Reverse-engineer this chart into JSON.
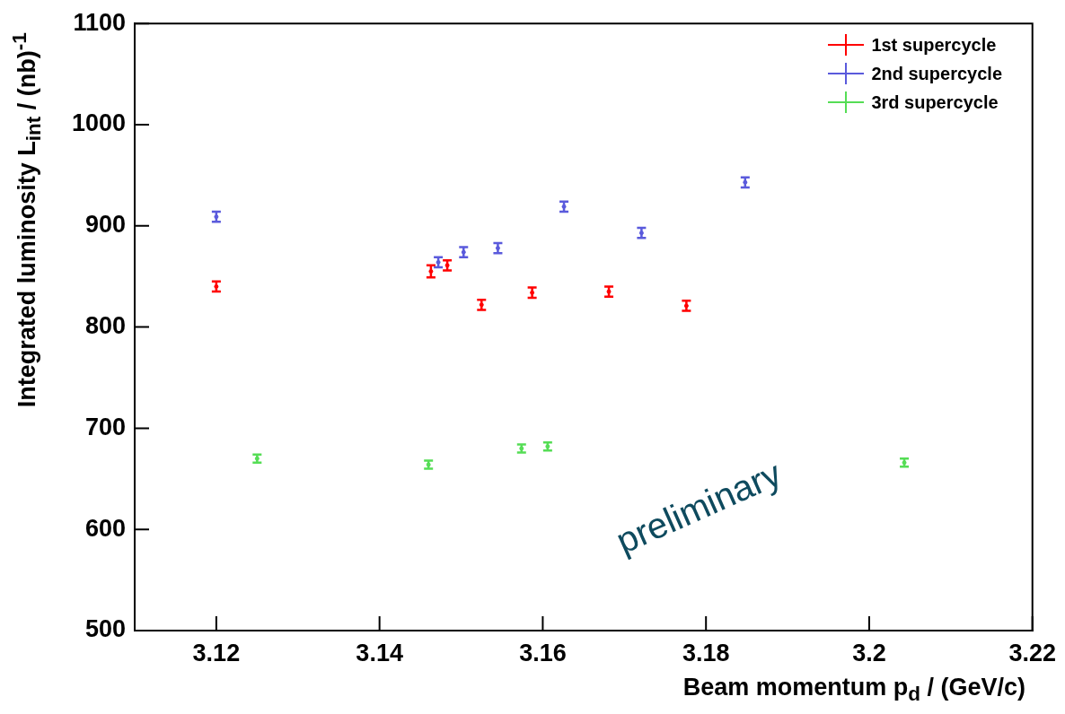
{
  "chart_data": {
    "type": "scatter",
    "xlabel": "Beam momentum p$_{d}$ / (GeV/c)",
    "ylabel": "Integrated luminosity L$_{int}$ / (nb)$^{-1}$",
    "xlim": [
      3.11,
      3.22
    ],
    "xticks": [
      3.12,
      3.14,
      3.16,
      3.18,
      3.2,
      3.22
    ],
    "ylim": [
      500,
      1100
    ],
    "yticks": [
      500,
      600,
      700,
      800,
      900,
      1000,
      1100
    ],
    "grid": false,
    "legend": "top right",
    "annotations": [
      "preliminary"
    ],
    "series": [
      {
        "name": "1st supercycle",
        "color": "#ff0000",
        "x": [
          3.12,
          3.1463,
          3.1483,
          3.1525,
          3.1587,
          3.1681,
          3.1776
        ],
        "values": [
          840,
          855,
          861,
          822,
          834,
          835,
          821
        ],
        "errors": [
          5,
          6,
          5,
          5,
          5,
          5,
          5
        ]
      },
      {
        "name": "2nd supercycle",
        "color": "#5a5adc",
        "x": [
          3.12,
          3.1472,
          3.1503,
          3.1545,
          3.1626,
          3.1721,
          3.1848
        ],
        "values": [
          909,
          864,
          874,
          878,
          919,
          893,
          943
        ],
        "errors": [
          5,
          5,
          5,
          5,
          5,
          5,
          5
        ]
      },
      {
        "name": "3rd supercycle",
        "color": "#55dd55",
        "x": [
          3.125,
          3.146,
          3.1574,
          3.1606,
          3.2043
        ],
        "values": [
          670,
          664,
          680,
          682,
          666
        ],
        "errors": [
          4,
          4,
          4,
          4,
          4
        ]
      }
    ]
  }
}
